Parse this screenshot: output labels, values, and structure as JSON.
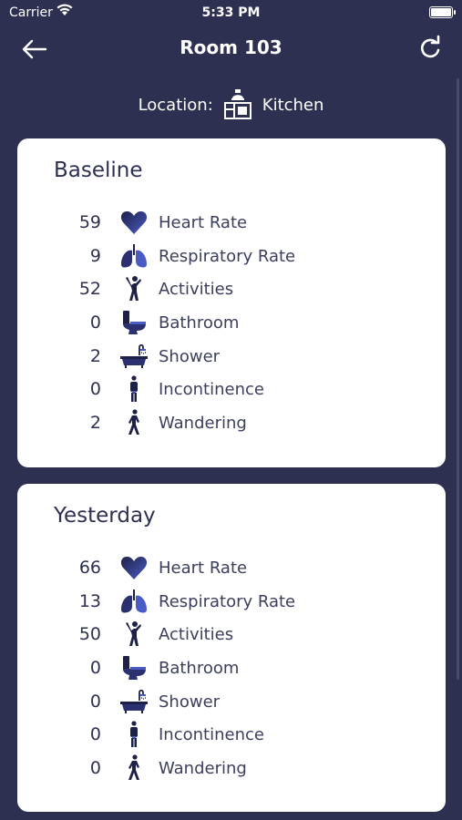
{
  "status": {
    "carrier": "Carrier",
    "time": "5:33 PM"
  },
  "header": {
    "title": "Room 103"
  },
  "location": {
    "label": "Location:",
    "value": "Kitchen"
  },
  "baseline": {
    "title": "Baseline",
    "rows": [
      {
        "value": "59",
        "label": "Heart Rate",
        "icon": "heart-icon"
      },
      {
        "value": "9",
        "label": "Respiratory Rate",
        "icon": "lungs-icon"
      },
      {
        "value": "52",
        "label": "Activities",
        "icon": "activity-person-icon"
      },
      {
        "value": "0",
        "label": "Bathroom",
        "icon": "toilet-icon"
      },
      {
        "value": "2",
        "label": "Shower",
        "icon": "bathtub-icon"
      },
      {
        "value": "0",
        "label": "Incontinence",
        "icon": "standing-person-icon"
      },
      {
        "value": "2",
        "label": "Wandering",
        "icon": "walking-person-icon"
      }
    ]
  },
  "yesterday": {
    "title": "Yesterday",
    "rows": [
      {
        "value": "66",
        "label": "Heart Rate",
        "icon": "heart-icon"
      },
      {
        "value": "13",
        "label": "Respiratory Rate",
        "icon": "lungs-icon"
      },
      {
        "value": "50",
        "label": "Activities",
        "icon": "activity-person-icon"
      },
      {
        "value": "0",
        "label": "Bathroom",
        "icon": "toilet-icon"
      },
      {
        "value": "0",
        "label": "Shower",
        "icon": "bathtub-icon"
      },
      {
        "value": "0",
        "label": "Incontinence",
        "icon": "standing-person-icon"
      },
      {
        "value": "0",
        "label": "Wandering",
        "icon": "walking-person-icon"
      }
    ]
  },
  "colors": {
    "background": "#2d3050",
    "card": "#ffffff",
    "icon_accent": "#3f4fa8"
  }
}
